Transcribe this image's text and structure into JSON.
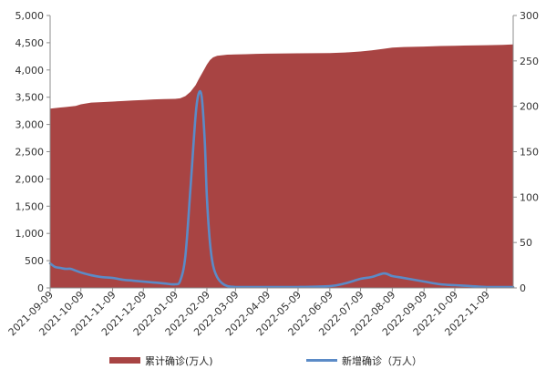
{
  "chart_data": {
    "type": "area+line",
    "x_dates": [
      "2021-09-09",
      "2021-09-14",
      "2021-09-19",
      "2021-09-24",
      "2021-09-29",
      "2021-10-04",
      "2021-10-09",
      "2021-10-19",
      "2021-10-29",
      "2021-11-09",
      "2021-11-19",
      "2021-11-29",
      "2021-12-09",
      "2021-12-19",
      "2021-12-29",
      "2022-01-09",
      "2022-01-14",
      "2022-01-19",
      "2022-01-24",
      "2022-01-29",
      "2022-02-01",
      "2022-02-04",
      "2022-02-07",
      "2022-02-09",
      "2022-02-12",
      "2022-02-15",
      "2022-02-19",
      "2022-02-24",
      "2022-03-01",
      "2022-03-09",
      "2022-03-19",
      "2022-03-29",
      "2022-04-09",
      "2022-05-09",
      "2022-06-09",
      "2022-06-24",
      "2022-07-09",
      "2022-07-20",
      "2022-08-01",
      "2022-08-09",
      "2022-08-20",
      "2022-09-09",
      "2022-09-25",
      "2022-10-09",
      "2022-10-25",
      "2022-11-09",
      "2022-11-25",
      "2022-12-05"
    ],
    "series": [
      {
        "name": "累计确诊(万人)",
        "type": "area",
        "axis": "left",
        "color": "#A84443",
        "values": [
          3290,
          3300,
          3310,
          3320,
          3330,
          3340,
          3370,
          3400,
          3410,
          3420,
          3430,
          3440,
          3450,
          3460,
          3465,
          3470,
          3480,
          3520,
          3600,
          3720,
          3830,
          3930,
          4030,
          4100,
          4180,
          4230,
          4260,
          4270,
          4280,
          4285,
          4290,
          4295,
          4300,
          4305,
          4310,
          4320,
          4340,
          4360,
          4390,
          4410,
          4420,
          4430,
          4440,
          4445,
          4450,
          4455,
          4460,
          4470
        ]
      },
      {
        "name": "新增确诊（万人）",
        "type": "line",
        "axis": "right",
        "color": "#5B8BC7",
        "values": [
          27,
          23,
          22,
          21,
          21,
          19,
          17,
          14,
          12,
          11,
          9,
          8,
          7,
          6,
          5,
          4,
          8,
          35,
          110,
          190,
          214,
          210,
          160,
          100,
          50,
          25,
          12,
          5,
          2,
          1,
          1,
          1,
          1,
          1,
          2,
          5,
          10,
          12,
          16,
          13,
          11,
          7,
          4,
          3,
          2,
          1,
          1,
          1
        ]
      }
    ],
    "x_tick_labels": [
      "2021-09-09",
      "2021-10-09",
      "2021-11-09",
      "2021-12-09",
      "2022-01-09",
      "2022-02-09",
      "2022-03-09",
      "2022-04-09",
      "2022-05-09",
      "2022-06-09",
      "2022-07-09",
      "2022-08-09",
      "2022-09-09",
      "2022-10-09",
      "2022-11-09"
    ],
    "y_left_ticks": [
      "5,000",
      "4,500",
      "4,000",
      "3,500",
      "3,000",
      "2,500",
      "2,000",
      "1,500",
      "1,000",
      "500",
      "0"
    ],
    "y_right_ticks": [
      "300",
      "250",
      "200",
      "150",
      "100",
      "50",
      "0"
    ],
    "ylim_left": [
      0,
      5000
    ],
    "ylim_right": [
      0,
      300
    ],
    "xlim": [
      "2021-09-09",
      "2022-12-05"
    ],
    "title": "",
    "xlabel": "",
    "ylabel": "",
    "grid": false,
    "legend_position": "bottom"
  },
  "legend": {
    "items": [
      {
        "label": "累计确诊(万人)",
        "color": "#A84443",
        "kind": "box"
      },
      {
        "label": "新增确诊（万人）",
        "color": "#5B8BC7",
        "kind": "line"
      }
    ]
  }
}
